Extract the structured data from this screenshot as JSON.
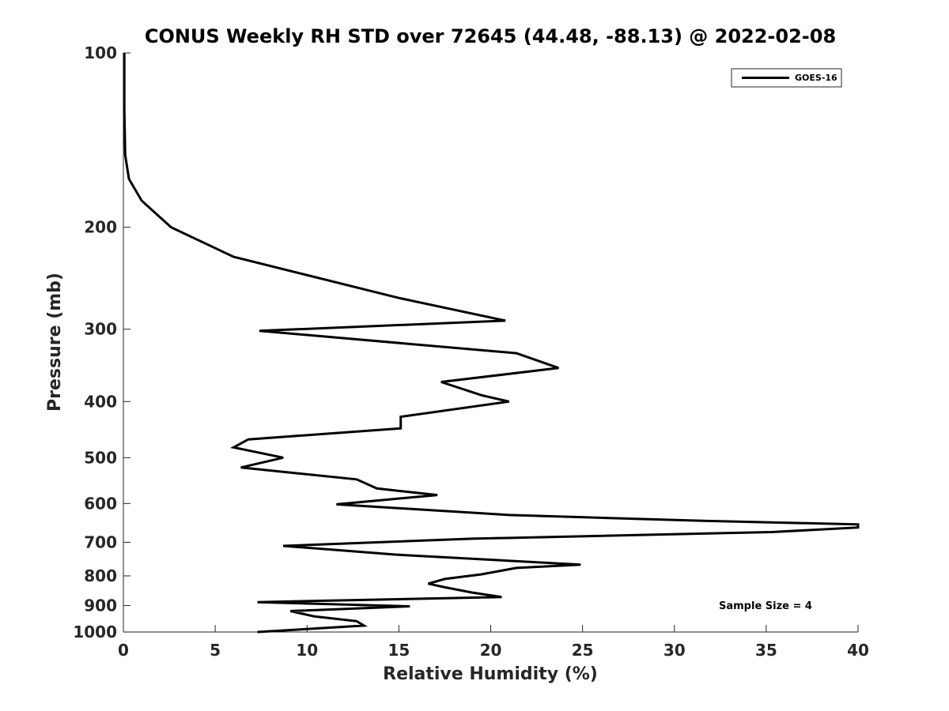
{
  "chart_data": {
    "type": "line",
    "title": "CONUS Weekly RH STD over 72645 (44.48, -88.13) @ 2022-02-08",
    "xlabel": "Relative Humidity (%)",
    "ylabel": "Pressure (mb)",
    "xlim": [
      0,
      40
    ],
    "ylim": [
      100,
      1000
    ],
    "y_scale": "log",
    "y_reversed": true,
    "x_ticks": [
      0,
      5,
      10,
      15,
      20,
      25,
      30,
      35,
      40
    ],
    "x_tick_labels": [
      "0",
      "5",
      "10",
      "15",
      "20",
      "25",
      "30",
      "35",
      "40"
    ],
    "y_ticks": [
      100,
      200,
      300,
      400,
      500,
      600,
      700,
      800,
      900,
      1000
    ],
    "y_tick_labels": [
      "100",
      "200",
      "300",
      "400",
      "500",
      "600",
      "700",
      "800",
      "900",
      "1000"
    ],
    "grid": false,
    "legend_position": "top-right",
    "annotation": "Sample Size = 4",
    "series": [
      {
        "name": "GOES-16",
        "color": "#000000",
        "x": [
          0.05,
          0.05,
          0.1,
          0.3,
          1.0,
          2.6,
          6.0,
          15.0,
          20.8,
          7.4,
          21.4,
          23.7,
          17.3,
          19.5,
          21.0,
          15.1,
          15.1,
          6.8,
          6.0,
          8.7,
          6.4,
          12.7,
          13.8,
          17.1,
          11.6,
          21.0,
          31.0,
          40.0,
          40.0,
          35.3,
          19.0,
          8.7,
          14.8,
          24.9,
          21.4,
          19.5,
          17.5,
          16.6,
          17.5,
          19.0,
          20.6,
          7.3,
          15.6,
          9.1,
          10.4,
          12.7,
          13.1,
          7.3
        ],
        "y": [
          100,
          125,
          150,
          165,
          180,
          200,
          225,
          265,
          290,
          302,
          330,
          350,
          370,
          390,
          400,
          425,
          445,
          465,
          480,
          500,
          520,
          545,
          565,
          580,
          602,
          628,
          642,
          652,
          660,
          672,
          690,
          710,
          735,
          765,
          775,
          795,
          810,
          825,
          837,
          855,
          870,
          888,
          903,
          920,
          940,
          958,
          975,
          1000
        ]
      }
    ]
  }
}
